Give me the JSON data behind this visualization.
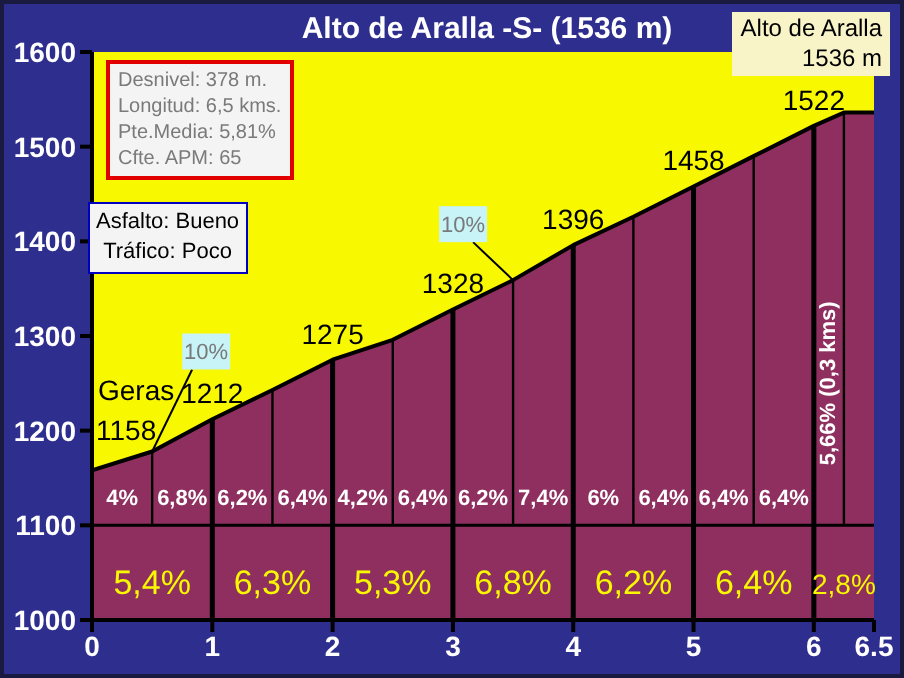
{
  "chart_data": {
    "type": "area",
    "title": "Alto de Aralla -S- (1536 m)",
    "x": [
      0,
      0.5,
      1,
      1.5,
      2,
      2.5,
      3,
      3.5,
      4,
      4.5,
      5,
      5.5,
      6,
      6.25,
      6.5
    ],
    "series": [
      {
        "color": "#8f2f5f",
        "values": [
          1158,
          1178,
          1212,
          1243,
          1275,
          1296,
          1328,
          1359,
          1396,
          1426,
          1458,
          1490,
          1522,
          1536,
          1536
        ],
        "value_labels": [
          "1158",
          null,
          "1212",
          null,
          "1275",
          null,
          "1328",
          null,
          "1396",
          null,
          "1458",
          null,
          "1522",
          null,
          null
        ]
      }
    ],
    "xlim": [
      0,
      6.5
    ],
    "xticks": [
      0,
      1,
      2,
      3,
      4,
      5,
      6,
      6.5
    ],
    "ylim": [
      1000,
      1600
    ],
    "yticks": [
      1000,
      1100,
      1200,
      1300,
      1400,
      1500,
      1600
    ],
    "grid": false,
    "legend": false,
    "ref_lines": [
      {
        "axis": "y",
        "value": 1100,
        "color": "#000000"
      },
      {
        "axis": "x",
        "value": 1,
        "color": "#000000"
      },
      {
        "axis": "x",
        "value": 2,
        "color": "#000000"
      },
      {
        "axis": "x",
        "value": 3,
        "color": "#000000"
      },
      {
        "axis": "x",
        "value": 4,
        "color": "#000000"
      },
      {
        "axis": "x",
        "value": 5,
        "color": "#000000"
      },
      {
        "axis": "x",
        "value": 6,
        "color": "#000000"
      },
      {
        "axis": "x",
        "value": 0.5,
        "color": "#000000"
      },
      {
        "axis": "x",
        "value": 1.5,
        "color": "#000000"
      },
      {
        "axis": "x",
        "value": 2.5,
        "color": "#000000"
      },
      {
        "axis": "x",
        "value": 3.5,
        "color": "#000000"
      },
      {
        "axis": "x",
        "value": 4.5,
        "color": "#000000"
      },
      {
        "axis": "x",
        "value": 5.5,
        "color": "#000000"
      },
      {
        "axis": "x",
        "value": 6.25,
        "color": "#000000"
      }
    ],
    "annotations": [
      "Desnivel: 378 m.",
      "Longitud: 6,5 kms.",
      "Pte.Media: 5,81%",
      "Cfte. APM: 65",
      "Asfalto: Bueno",
      "Tráfico: Poco",
      "Alto de Aralla",
      "1536 m",
      "Geras",
      "4%",
      "6,8%",
      "6,2%",
      "6,4%",
      "4,2%",
      "6,4%",
      "6,2%",
      "7,4%",
      "6%",
      "6,4%",
      "6,4%",
      "6,4%",
      "5,4%",
      "6,3%",
      "5,3%",
      "6,8%",
      "6,2%",
      "6,4%",
      "2,8%",
      "5,66% (0,3 kms)",
      {
        "text": "10%",
        "x": 0.5,
        "y": 1178
      },
      {
        "text": "10%",
        "x": 3.5,
        "y": 1359
      }
    ]
  }
}
